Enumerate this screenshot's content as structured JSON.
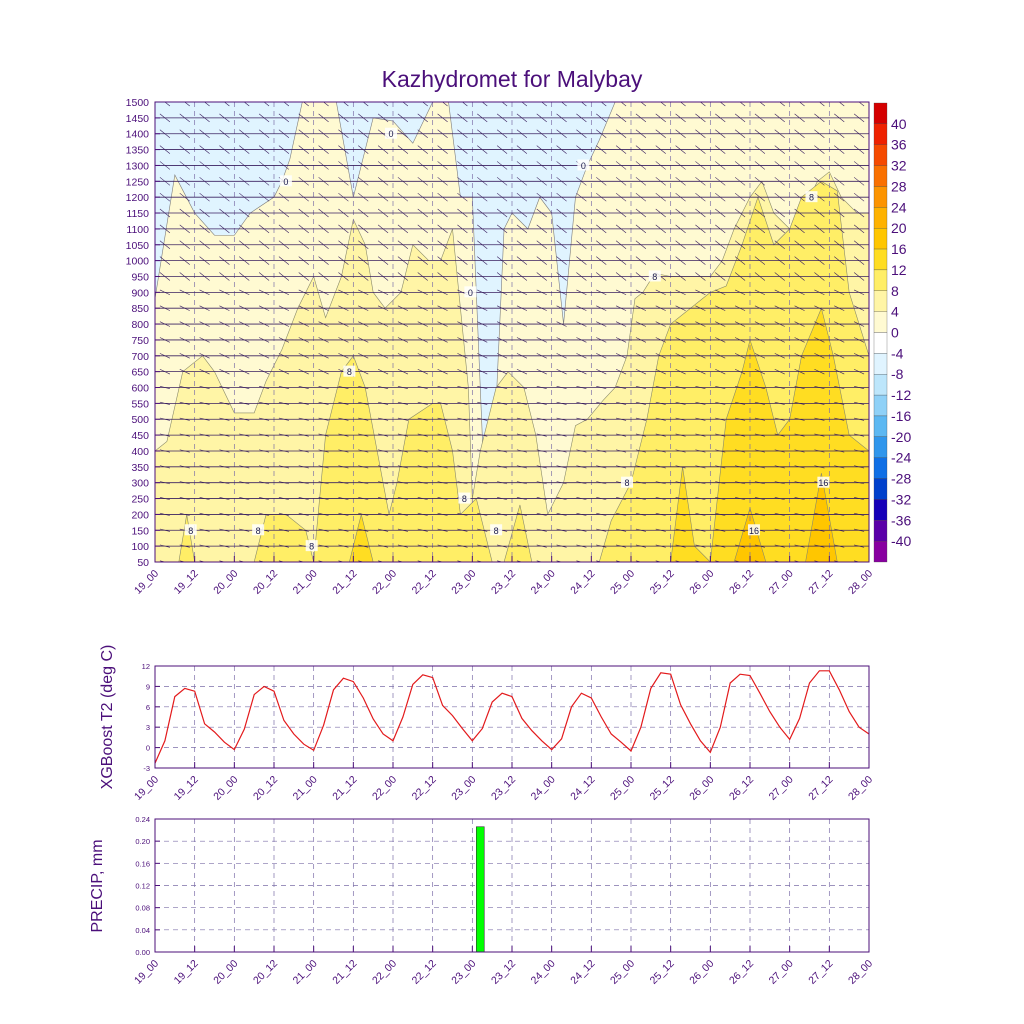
{
  "chart_data": [
    {
      "type": "heatmap",
      "subtype": "time-height cross-section (filled contours with wind barbs)",
      "title": "Kazhydromet for Malybay",
      "xlabel": "",
      "ylabel": "",
      "x_ticks": [
        "19_00",
        "19_12",
        "20_00",
        "20_12",
        "21_00",
        "21_12",
        "22_00",
        "22_12",
        "23_00",
        "23_12",
        "24_00",
        "24_12",
        "25_00",
        "25_12",
        "26_00",
        "26_12",
        "27_00",
        "27_12",
        "28_00"
      ],
      "y_ticks": [
        50,
        100,
        150,
        200,
        250,
        300,
        350,
        400,
        450,
        500,
        550,
        600,
        650,
        700,
        750,
        800,
        850,
        900,
        950,
        1000,
        1050,
        1100,
        1150,
        1200,
        1250,
        1300,
        1350,
        1400,
        1450,
        1500
      ],
      "ylim": [
        50,
        1500
      ],
      "xlim": [
        0,
        18
      ],
      "colorbar": {
        "labels": [
          "40",
          "36",
          "32",
          "28",
          "24",
          "20",
          "16",
          "12",
          "8",
          "4",
          "0",
          "-4",
          "-8",
          "-12",
          "-16",
          "-20",
          "-24",
          "-28",
          "-32",
          "-36",
          "-40"
        ],
        "levels": [
          44,
          40,
          36,
          32,
          28,
          24,
          20,
          16,
          12,
          8,
          4,
          0,
          -4,
          -8,
          -12,
          -16,
          -20,
          -24,
          -28,
          -32,
          -36,
          -40
        ],
        "colors": [
          "#d40000",
          "#ee2200",
          "#f54a00",
          "#f97000",
          "#fc9400",
          "#feb200",
          "#ffc600",
          "#ffdd22",
          "#ffee66",
          "#fff5a6",
          "#fffad2",
          "#ffffff",
          "#e0f4ff",
          "#bde6fb",
          "#8fd1f7",
          "#5cb8f2",
          "#2f96ec",
          "#0f6fe5",
          "#0040cc",
          "#1500b8",
          "#5a00a8",
          "#8800a0"
        ]
      },
      "contour_labels": [
        {
          "text": "8",
          "x": 0.9,
          "y": 150
        },
        {
          "text": "8",
          "x": 2.6,
          "y": 150
        },
        {
          "text": "8",
          "x": 3.95,
          "y": 100
        },
        {
          "text": "8",
          "x": 4.9,
          "y": 650
        },
        {
          "text": "8",
          "x": 7.8,
          "y": 250
        },
        {
          "text": "8",
          "x": 8.6,
          "y": 150
        },
        {
          "text": "8",
          "x": 11.9,
          "y": 300
        },
        {
          "text": "8",
          "x": 12.6,
          "y": 950
        },
        {
          "text": "8",
          "x": 16.55,
          "y": 1200
        },
        {
          "text": "16",
          "x": 15.1,
          "y": 150
        },
        {
          "text": "16",
          "x": 16.85,
          "y": 300
        },
        {
          "text": "0",
          "x": 3.3,
          "y": 1250
        },
        {
          "text": "0",
          "x": 5.95,
          "y": 1400
        },
        {
          "text": "0",
          "x": 7.95,
          "y": 900
        },
        {
          "text": "0",
          "x": 10.8,
          "y": 1300
        }
      ],
      "regions": [
        {
          "level": "0..4",
          "x": [
            0,
            0.5,
            1,
            1.5,
            2,
            2.4,
            3.0,
            3.2,
            3.4,
            3.8,
            4.5,
            5,
            5.5,
            6,
            6.5,
            7.0,
            7.4,
            7.7,
            8.0,
            8.3,
            8.6,
            8.8,
            9.0,
            9.4,
            9.7,
            10,
            10.3,
            10.6,
            10.9,
            11.2,
            11.6,
            12.0,
            12.3,
            12.6,
            13,
            18
          ],
          "y": [
            880,
            1270,
            1150,
            1080,
            1080,
            1150,
            1200,
            1250,
            1320,
            1550,
            1550,
            1200,
            1450,
            1440,
            1370,
            1500,
            1500,
            1200,
            1200,
            300,
            550,
            1100,
            1150,
            1100,
            1200,
            1150,
            800,
            1200,
            1300,
            1380,
            1500,
            1500,
            1500,
            1500,
            1500,
            1500
          ]
        },
        {
          "level": "4..8",
          "x": [
            0,
            0.3,
            0.7,
            1.2,
            1.5,
            2,
            2.5,
            2.8,
            3.2,
            3.6,
            4.0,
            4.3,
            4.7,
            5.0,
            5.3,
            5.5,
            5.8,
            6.2,
            6.5,
            6.9,
            7.2,
            7.5,
            7.9,
            8.0,
            8.2,
            8.6,
            8.9,
            9.3,
            9.6,
            9.9,
            10.3,
            10.6,
            10.9,
            11.3,
            11.6,
            11.9,
            12.1,
            12.3,
            12.6,
            13,
            13.5,
            14,
            14.3,
            14.6,
            15,
            15.3,
            15.6,
            16,
            16.3,
            16.7,
            17,
            17.3,
            17.7,
            18
          ],
          "y": [
            400,
            430,
            650,
            700,
            650,
            520,
            520,
            620,
            720,
            850,
            950,
            820,
            950,
            1130,
            1050,
            900,
            850,
            900,
            1050,
            1000,
            1000,
            1100,
            600,
            250,
            400,
            600,
            650,
            600,
            450,
            200,
            300,
            480,
            500,
            560,
            600,
            700,
            880,
            900,
            960,
            950,
            950,
            950,
            1000,
            1100,
            1200,
            1250,
            1150,
            1100,
            1150,
            1250,
            1280,
            1200,
            1150,
            1150
          ]
        },
        {
          "level": "8..12",
          "x": [
            0.6,
            0.8,
            1.0,
            2.5,
            2.8,
            3.3,
            3.8,
            4.0,
            4.3,
            4.7,
            5.0,
            5.3,
            5.6,
            5.9,
            6.1,
            6.4,
            7.0,
            7.2,
            7.5,
            7.7,
            8.1,
            8.5,
            8.8,
            9.2,
            9.5,
            11.2,
            11.5,
            12.0,
            12.4,
            12.7,
            13,
            13.5,
            14,
            14.4,
            14.8,
            15.2,
            15.6,
            16,
            16.3,
            16.8,
            17.2,
            17.5,
            18
          ],
          "y": [
            50,
            200,
            50,
            50,
            200,
            200,
            150,
            50,
            450,
            650,
            700,
            600,
            400,
            200,
            300,
            500,
            550,
            550,
            400,
            200,
            250,
            50,
            50,
            230,
            50,
            50,
            180,
            300,
            500,
            700,
            800,
            850,
            900,
            920,
            1050,
            1200,
            1050,
            1100,
            1200,
            1250,
            1220,
            900,
            700
          ]
        },
        {
          "level": "12..16",
          "x": [
            4.9,
            5.2,
            5.5,
            13.0,
            13.3,
            13.6,
            14.0,
            14.4,
            14.8,
            15.0,
            15.4,
            15.7,
            16.0,
            16.3,
            16.8,
            17.1,
            17.5,
            18
          ],
          "y": [
            50,
            200,
            50,
            50,
            350,
            100,
            50,
            500,
            650,
            750,
            600,
            450,
            500,
            700,
            850,
            700,
            450,
            400
          ]
        },
        {
          "level": "16..20",
          "x": [
            14.6,
            15.0,
            15.4,
            16.4,
            16.8,
            17.2
          ],
          "y": [
            50,
            220,
            50,
            50,
            330,
            50
          ]
        }
      ]
    },
    {
      "type": "line",
      "title": "",
      "xlabel": "",
      "ylabel": "XGBoost T2 (deg C)",
      "x_ticks": [
        "19_00",
        "19_12",
        "20_00",
        "20_12",
        "21_00",
        "21_12",
        "22_00",
        "22_12",
        "23_00",
        "23_12",
        "24_00",
        "24_12",
        "25_00",
        "25_12",
        "26_00",
        "26_12",
        "27_00",
        "27_12",
        "28_00"
      ],
      "y_ticks": [
        -3,
        0,
        3,
        6,
        9,
        12
      ],
      "ylim": [
        -3,
        12
      ],
      "xlim": [
        0,
        18
      ],
      "grid": true,
      "series": [
        {
          "name": "T2",
          "color": "#e31a1c",
          "x": [
            0,
            0.25,
            0.5,
            0.75,
            1,
            1.25,
            1.5,
            1.75,
            2,
            2.25,
            2.5,
            2.75,
            3,
            3.25,
            3.5,
            3.75,
            4,
            4.25,
            4.5,
            4.75,
            5,
            5.25,
            5.5,
            5.75,
            6,
            6.25,
            6.5,
            6.75,
            7,
            7.25,
            7.5,
            7.75,
            8,
            8.25,
            8.5,
            8.75,
            9,
            9.25,
            9.5,
            9.75,
            10,
            10.25,
            10.5,
            10.75,
            11,
            11.25,
            11.5,
            11.75,
            12,
            12.25,
            12.5,
            12.75,
            13,
            13.25,
            13.5,
            13.75,
            14,
            14.25,
            14.5,
            14.75,
            15,
            15.25,
            15.5,
            15.75,
            16,
            16.25,
            16.5,
            16.75,
            17,
            17.25,
            17.5,
            17.75,
            18
          ],
          "values": [
            -2.3,
            1.0,
            7.5,
            8.7,
            8.3,
            3.5,
            2.3,
            0.8,
            -0.3,
            2.7,
            7.8,
            9.0,
            8.3,
            4.0,
            2.0,
            0.5,
            -0.4,
            3.3,
            8.5,
            10.2,
            9.7,
            7.3,
            4.2,
            2.0,
            1.0,
            4.5,
            9.3,
            10.7,
            10.3,
            6.2,
            4.7,
            2.8,
            1.0,
            2.8,
            6.7,
            8.0,
            7.5,
            4.3,
            2.5,
            1.0,
            -0.3,
            1.3,
            6.0,
            8.0,
            7.3,
            4.5,
            2.0,
            0.8,
            -0.5,
            3.0,
            8.7,
            11.0,
            10.8,
            6.3,
            3.5,
            1.0,
            -0.7,
            3.0,
            9.5,
            10.8,
            10.6,
            8.0,
            5.3,
            3.0,
            1.2,
            4.3,
            9.5,
            11.3,
            11.3,
            8.5,
            5.3,
            3.0,
            2.0
          ]
        }
      ]
    },
    {
      "type": "bar",
      "title": "",
      "xlabel": "",
      "ylabel": "PRECIP, mm",
      "x_ticks": [
        "19_00",
        "19_12",
        "20_00",
        "20_12",
        "21_00",
        "21_12",
        "22_00",
        "22_12",
        "23_00",
        "23_12",
        "24_00",
        "24_12",
        "25_00",
        "25_12",
        "26_00",
        "26_12",
        "27_00",
        "27_12",
        "28_00"
      ],
      "y_ticks": [
        "0.00",
        "0.04",
        "0.08",
        "0.12",
        "0.16",
        "0.20",
        "0.24"
      ],
      "ylim": [
        0,
        0.24
      ],
      "xlim": [
        0,
        18
      ],
      "grid": true,
      "bars": [
        {
          "x_start": 8.1,
          "x_end": 8.3,
          "value": 0.226,
          "color": "#00ff00"
        }
      ]
    }
  ]
}
